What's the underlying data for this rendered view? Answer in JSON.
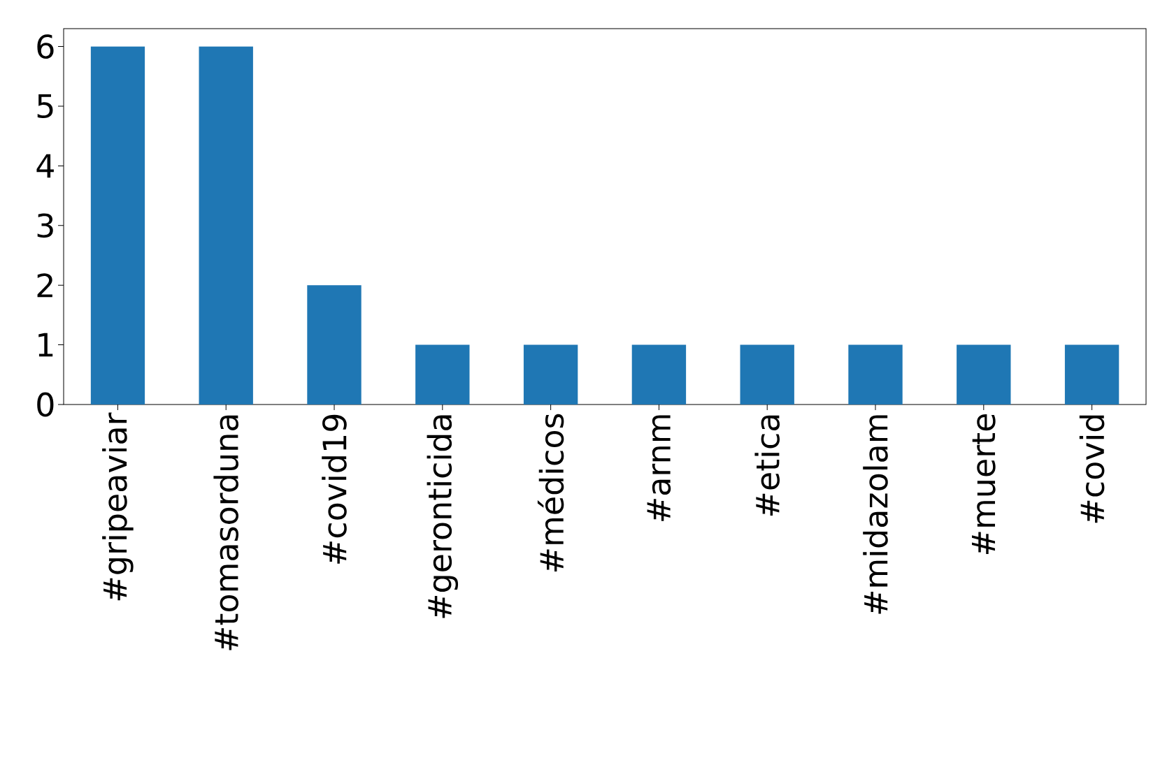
{
  "chart_data": {
    "type": "bar",
    "categories": [
      "#gripeaviar",
      "#tomasorduna",
      "#covid19",
      "#geronticida",
      "#médicos",
      "#arnm",
      "#etica",
      "#midazolam",
      "#muerte",
      "#covid"
    ],
    "values": [
      6,
      6,
      2,
      1,
      1,
      1,
      1,
      1,
      1,
      1
    ],
    "color": "#1f77b4",
    "ylim": [
      0,
      6.3
    ],
    "yticks": [
      0,
      1,
      2,
      3,
      4,
      5,
      6
    ]
  }
}
